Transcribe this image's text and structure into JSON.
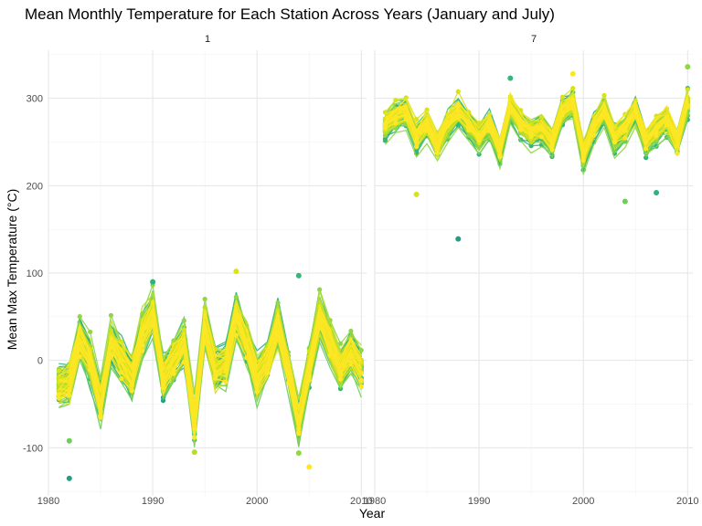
{
  "chart_data": {
    "type": "line",
    "title": "Mean Monthly Temperature for Each Station Across Years (January and July)",
    "xlabel": "Year",
    "ylabel": "Mean Max Temperature (°C)",
    "xlim": [
      1980,
      2010.5
    ],
    "ylim": [
      -155,
      355
    ],
    "x_ticks": [
      1980,
      1990,
      2000,
      2010
    ],
    "y_ticks": [
      -100,
      0,
      100,
      200,
      300
    ],
    "grid": true,
    "legend": "none",
    "colors": [
      "#1f9e89",
      "#2db27d",
      "#35b779",
      "#6ece58",
      "#90d743",
      "#b5de2b",
      "#d8e219",
      "#fde725"
    ],
    "panels": [
      {
        "label": "1",
        "years": [
          1981,
          1982,
          1983,
          1984,
          1985,
          1986,
          1987,
          1988,
          1989,
          1990,
          1991,
          1992,
          1993,
          1994,
          1995,
          1996,
          1997,
          1998,
          1999,
          2000,
          2001,
          2002,
          2003,
          2004,
          2005,
          2006,
          2007,
          2008,
          2009,
          2010
        ],
        "mean_values": [
          -30,
          -25,
          25,
          0,
          -50,
          20,
          0,
          -20,
          30,
          55,
          -20,
          0,
          20,
          -70,
          40,
          -10,
          -5,
          50,
          20,
          -20,
          0,
          40,
          -10,
          -70,
          -10,
          50,
          20,
          -10,
          10,
          -10
        ],
        "spread": 30,
        "outliers": [
          {
            "x": 1982,
            "y": -135
          },
          {
            "x": 1982,
            "y": -92
          },
          {
            "x": 1998,
            "y": 102
          },
          {
            "x": 1990,
            "y": 90
          },
          {
            "x": 2004,
            "y": -106
          },
          {
            "x": 2005,
            "y": -122
          },
          {
            "x": 2004,
            "y": 97
          },
          {
            "x": 1994,
            "y": -105
          }
        ]
      },
      {
        "label": "7",
        "years": [
          1981,
          1982,
          1983,
          1984,
          1985,
          1986,
          1987,
          1988,
          1989,
          1990,
          1991,
          1992,
          1993,
          1994,
          1995,
          1996,
          1997,
          1998,
          1999,
          2000,
          2001,
          2002,
          2003,
          2004,
          2005,
          2006,
          2007,
          2008,
          2009,
          2010
        ],
        "mean_values": [
          270,
          280,
          285,
          255,
          270,
          245,
          270,
          285,
          270,
          255,
          270,
          240,
          290,
          270,
          260,
          265,
          250,
          285,
          295,
          235,
          265,
          285,
          255,
          265,
          285,
          250,
          265,
          275,
          250,
          295
        ],
        "spread": 20,
        "outliers": [
          {
            "x": 1988,
            "y": 139
          },
          {
            "x": 2004,
            "y": 182
          },
          {
            "x": 1984,
            "y": 190
          },
          {
            "x": 2007,
            "y": 192
          },
          {
            "x": 2010,
            "y": 336
          },
          {
            "x": 1999,
            "y": 328
          },
          {
            "x": 1993,
            "y": 323
          }
        ]
      }
    ],
    "series_count": 120
  }
}
